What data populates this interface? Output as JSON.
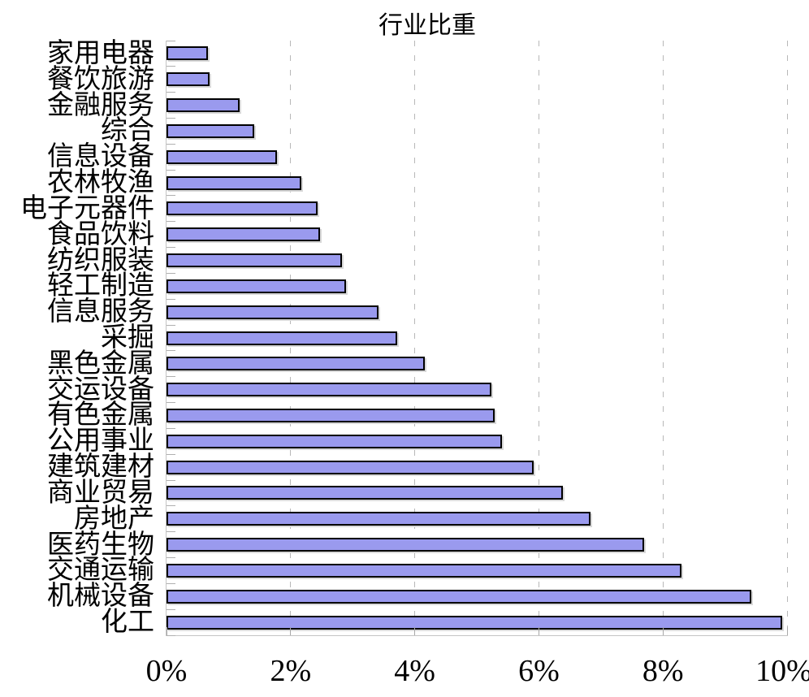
{
  "title": "行业比重",
  "colors": {
    "bar_fill": "#9a9aee",
    "bar_border": "#000000",
    "grid": "#b8b8b8",
    "axis": "#c4c4c4",
    "tick": "#a8a8a8",
    "text": "#000000",
    "background": "#ffffff"
  },
  "chart_data": {
    "type": "bar",
    "orientation": "horizontal",
    "title": "行业比重",
    "xlabel": "",
    "ylabel": "",
    "unit": "%",
    "xlim": [
      0,
      10
    ],
    "x_tick_labels": [
      "0%",
      "2%",
      "4%",
      "6%",
      "8%",
      "10%"
    ],
    "x_tick_values": [
      0,
      2,
      4,
      6,
      8,
      10
    ],
    "grid": "vertical dashed gridlines at 2% intervals",
    "legend": "none",
    "categories": [
      "家用电器",
      "餐饮旅游",
      "金融服务",
      "综合",
      "信息设备",
      "农林牧渔",
      "电子元器件",
      "食品饮料",
      "纺织服装",
      "轻工制造",
      "信息服务",
      "采掘",
      "黑色金属",
      "交运设备",
      "有色金属",
      "公用事业",
      "建筑建材",
      "商业贸易",
      "房地产",
      "医药生物",
      "交通运输",
      "机械设备",
      "化工"
    ],
    "values": [
      0.67,
      0.69,
      1.18,
      1.42,
      1.78,
      2.17,
      2.43,
      2.48,
      2.83,
      2.89,
      3.42,
      3.72,
      4.16,
      5.23,
      5.29,
      5.4,
      5.91,
      6.39,
      6.83,
      7.7,
      8.3,
      9.42,
      9.92
    ]
  }
}
